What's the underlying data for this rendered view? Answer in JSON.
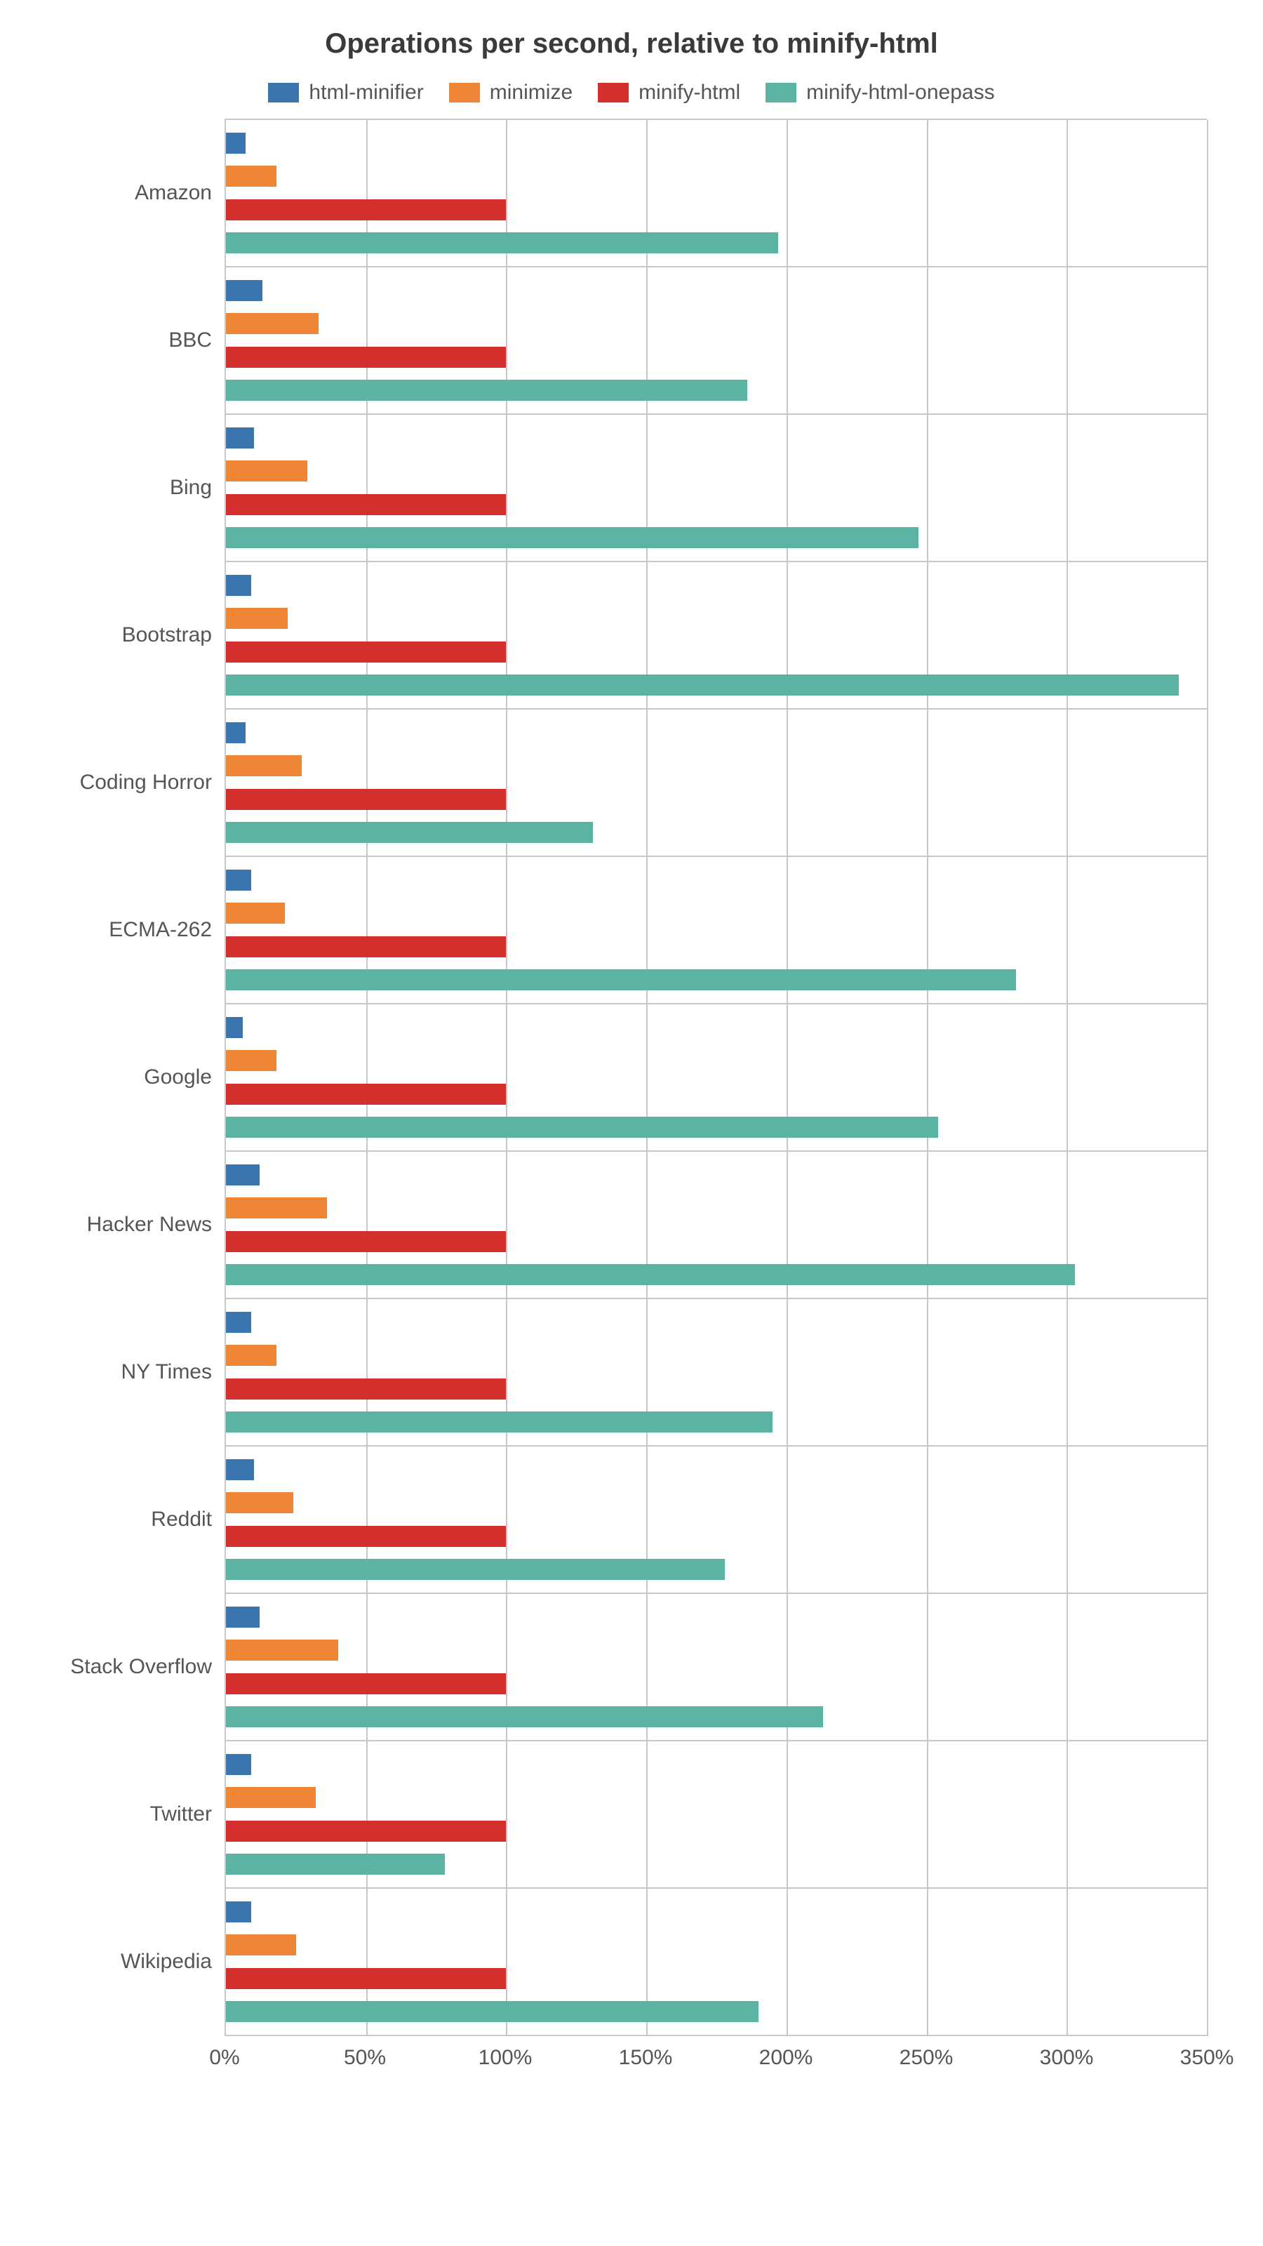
{
  "chart": {
    "title": "Operations per second, relative to minify-html",
    "title_fontsize": 40,
    "label_fontsize": 30,
    "background_color": "#ffffff",
    "grid_color": "#c8c8c8",
    "text_color": "#555555",
    "x_axis": {
      "min": 0,
      "max": 350,
      "tick_step": 50,
      "tick_suffix": "%",
      "ticks": [
        0,
        50,
        100,
        150,
        200,
        250,
        300,
        350
      ]
    },
    "series": [
      {
        "name": "html-minifier",
        "color": "#3b75af"
      },
      {
        "name": "minimize",
        "color": "#ef8636"
      },
      {
        "name": "minify-html",
        "color": "#d22f2d"
      },
      {
        "name": "minify-html-onepass",
        "color": "#5bb4a3"
      }
    ],
    "categories": [
      {
        "label": "Amazon",
        "values": [
          7,
          18,
          100,
          197
        ]
      },
      {
        "label": "BBC",
        "values": [
          13,
          33,
          100,
          186
        ]
      },
      {
        "label": "Bing",
        "values": [
          10,
          29,
          100,
          247
        ]
      },
      {
        "label": "Bootstrap",
        "values": [
          9,
          22,
          100,
          340
        ]
      },
      {
        "label": "Coding Horror",
        "values": [
          7,
          27,
          100,
          131
        ]
      },
      {
        "label": "ECMA-262",
        "values": [
          9,
          21,
          100,
          282
        ]
      },
      {
        "label": "Google",
        "values": [
          6,
          18,
          100,
          254
        ]
      },
      {
        "label": "Hacker News",
        "values": [
          12,
          36,
          100,
          303
        ]
      },
      {
        "label": "NY Times",
        "values": [
          9,
          18,
          100,
          195
        ]
      },
      {
        "label": "Reddit",
        "values": [
          10,
          24,
          100,
          178
        ]
      },
      {
        "label": "Stack Overflow",
        "values": [
          12,
          40,
          100,
          213
        ]
      },
      {
        "label": "Twitter",
        "values": [
          9,
          32,
          100,
          78
        ]
      },
      {
        "label": "Wikipedia",
        "values": [
          9,
          25,
          100,
          190
        ]
      }
    ]
  }
}
